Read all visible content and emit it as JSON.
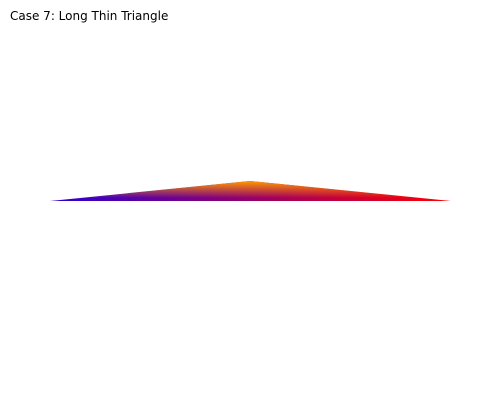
{
  "title": "Case 7: Long Thin Triangle",
  "triangle": {
    "vertex_colors": {
      "left": "#2a00d4",
      "apex": "#ff9a00",
      "right": "#ff0000"
    }
  }
}
